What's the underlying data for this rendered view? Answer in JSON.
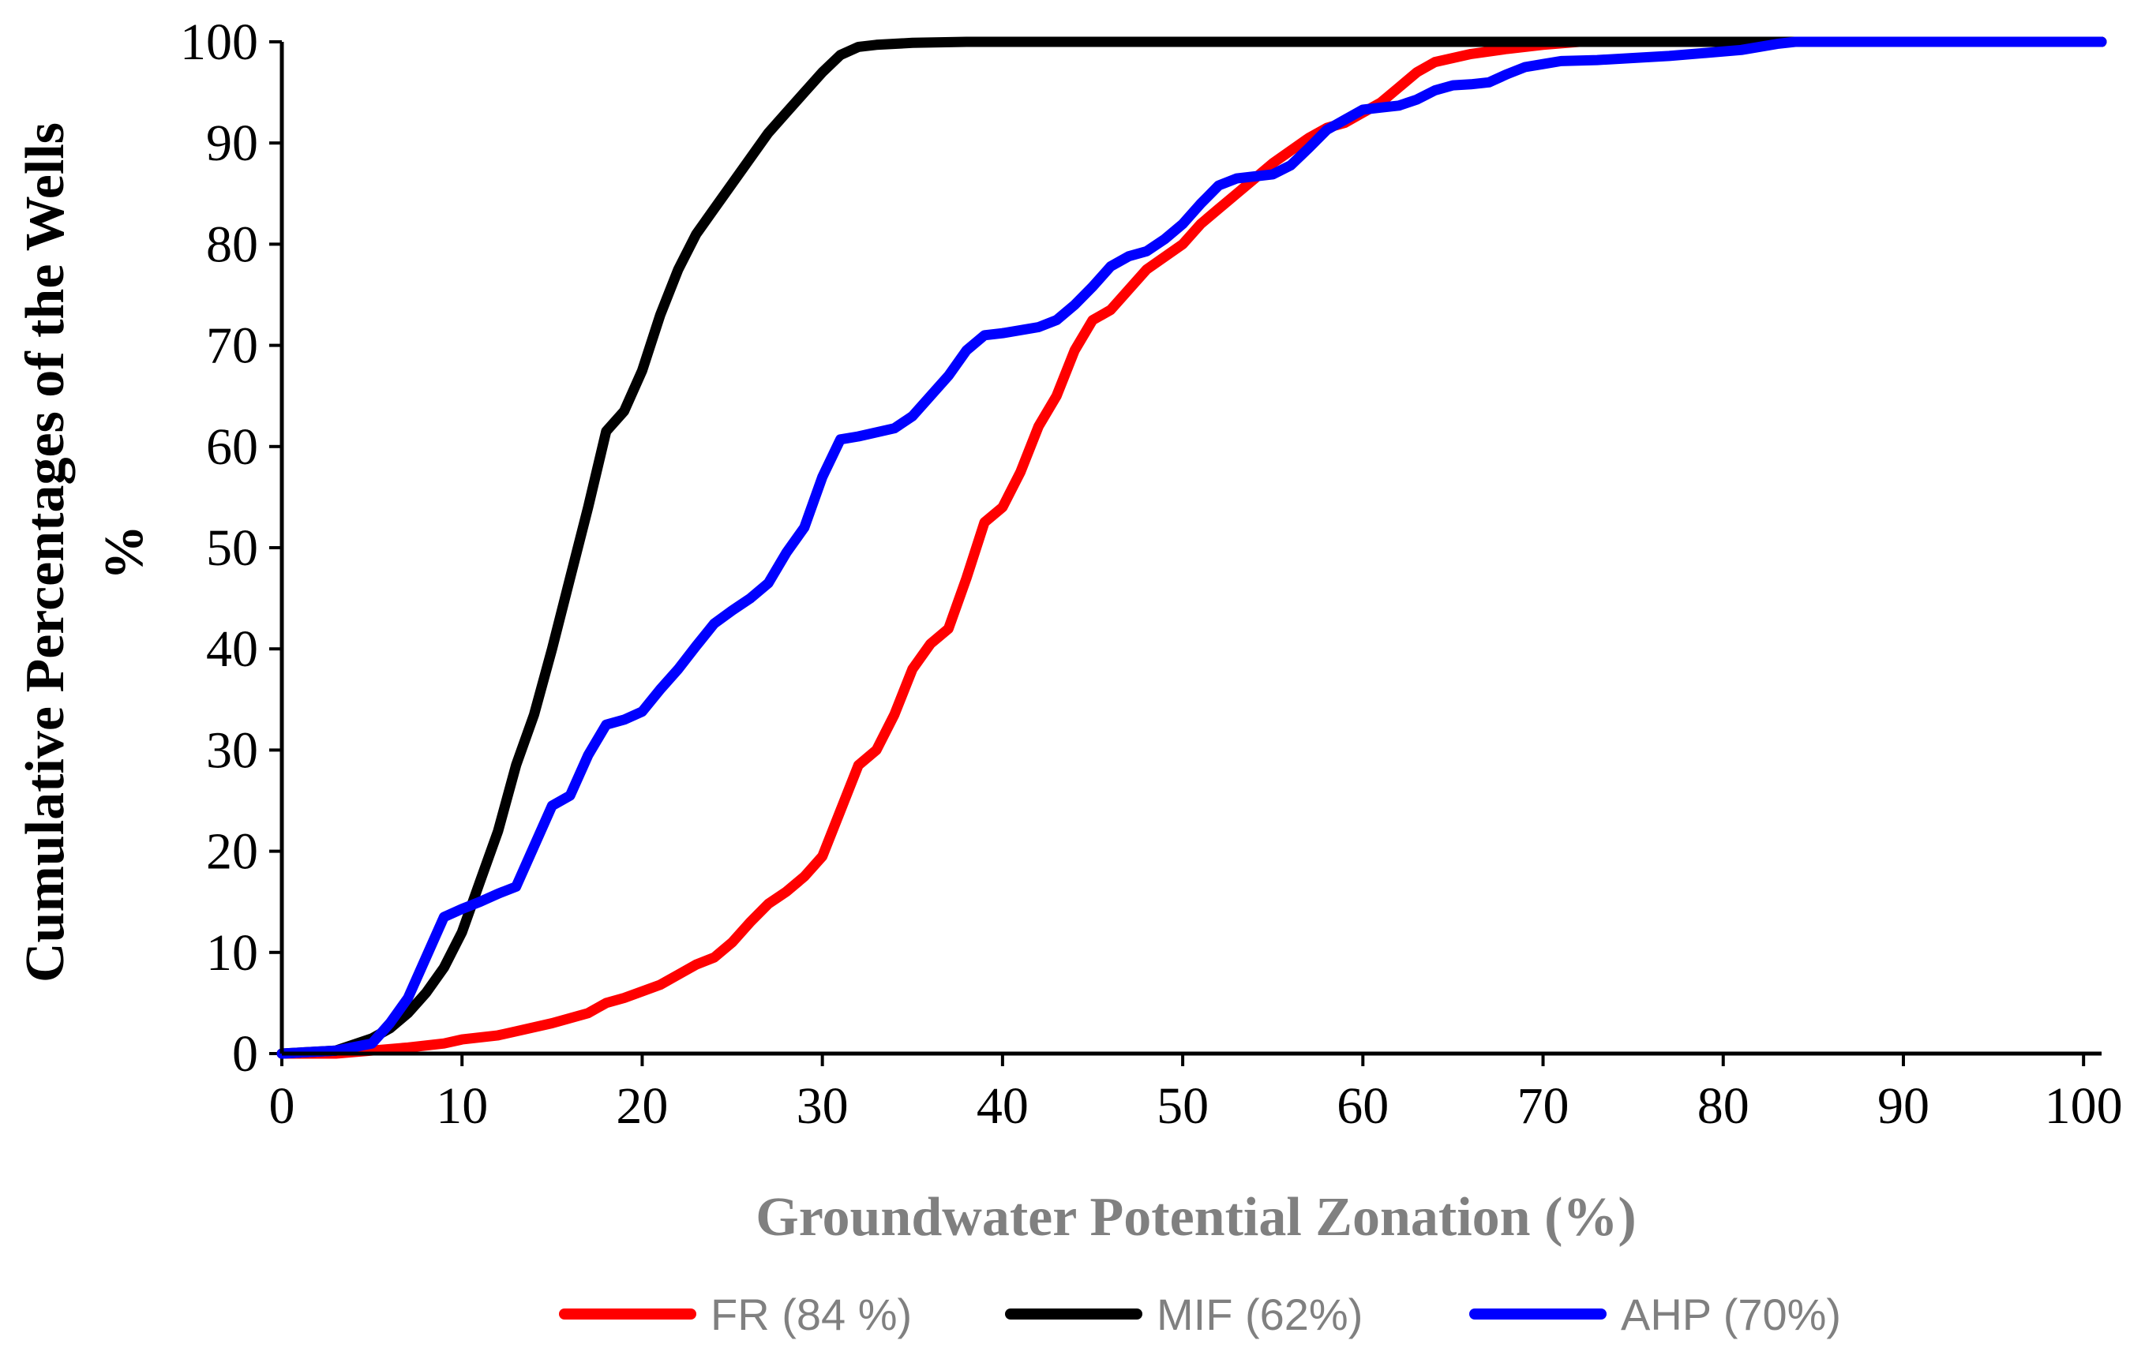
{
  "chart_data": {
    "type": "line",
    "title": "",
    "xlabel": "Groundwater Potential Zonation (%)",
    "ylabel_line1": "Cumulative Percentages of the Wells",
    "ylabel_line2": "%",
    "xlim": [
      0,
      101
    ],
    "ylim": [
      0,
      100
    ],
    "xticks": [
      "0",
      "10",
      "20",
      "30",
      "40",
      "50",
      "60",
      "70",
      "80",
      "90",
      "100"
    ],
    "yticks": [
      "0",
      "10",
      "20",
      "30",
      "40",
      "50",
      "60",
      "70",
      "80",
      "90",
      "100"
    ],
    "grid": false,
    "legend_position": "bottom",
    "series": [
      {
        "name": "FR (84 %)",
        "color": "#ff0000",
        "points": [
          [
            0,
            0
          ],
          [
            3,
            0
          ],
          [
            5,
            0.3
          ],
          [
            7,
            0.6
          ],
          [
            9,
            1
          ],
          [
            10,
            1.4
          ],
          [
            12,
            1.8
          ],
          [
            13,
            2.2
          ],
          [
            15,
            3
          ],
          [
            17,
            4
          ],
          [
            18,
            5
          ],
          [
            19,
            5.5
          ],
          [
            21,
            6.8
          ],
          [
            22,
            7.8
          ],
          [
            23,
            8.8
          ],
          [
            24,
            9.5
          ],
          [
            25,
            11
          ],
          [
            26,
            13
          ],
          [
            27,
            14.8
          ],
          [
            28,
            16
          ],
          [
            29,
            17.5
          ],
          [
            30,
            19.5
          ],
          [
            31,
            24
          ],
          [
            32,
            28.5
          ],
          [
            33,
            30
          ],
          [
            34,
            33.5
          ],
          [
            35,
            38
          ],
          [
            36,
            40.5
          ],
          [
            37,
            42
          ],
          [
            38,
            47
          ],
          [
            39,
            52.5
          ],
          [
            40,
            54
          ],
          [
            41,
            57.5
          ],
          [
            42,
            62
          ],
          [
            43,
            65
          ],
          [
            44,
            69.5
          ],
          [
            45,
            72.5
          ],
          [
            46,
            73.5
          ],
          [
            47,
            75.5
          ],
          [
            48,
            77.5
          ],
          [
            50,
            80
          ],
          [
            51,
            82
          ],
          [
            52,
            83.5
          ],
          [
            53,
            85
          ],
          [
            54,
            86.5
          ],
          [
            55,
            88
          ],
          [
            57,
            90.5
          ],
          [
            58,
            91.5
          ],
          [
            59,
            92
          ],
          [
            60,
            93
          ],
          [
            61,
            94
          ],
          [
            62,
            95.5
          ],
          [
            63,
            97
          ],
          [
            64,
            98
          ],
          [
            66,
            98.8
          ],
          [
            68,
            99.3
          ],
          [
            70,
            99.7
          ],
          [
            72,
            100
          ],
          [
            75,
            100
          ],
          [
            101,
            100
          ]
        ]
      },
      {
        "name": "MIF (62%)",
        "color": "#000000",
        "points": [
          [
            0,
            0
          ],
          [
            3,
            0.3
          ],
          [
            5,
            1.5
          ],
          [
            6,
            2.5
          ],
          [
            7,
            4
          ],
          [
            8,
            6
          ],
          [
            9,
            8.5
          ],
          [
            10,
            12
          ],
          [
            11,
            17
          ],
          [
            12,
            22
          ],
          [
            13,
            28.5
          ],
          [
            14,
            33.5
          ],
          [
            15,
            40
          ],
          [
            16,
            47
          ],
          [
            17,
            54
          ],
          [
            18,
            61.5
          ],
          [
            19,
            63.5
          ],
          [
            20,
            67.5
          ],
          [
            21,
            73
          ],
          [
            22,
            77.5
          ],
          [
            23,
            81
          ],
          [
            24,
            83.5
          ],
          [
            25,
            86
          ],
          [
            26,
            88.5
          ],
          [
            27,
            91
          ],
          [
            28,
            93
          ],
          [
            29,
            95
          ],
          [
            30,
            97
          ],
          [
            31,
            98.7
          ],
          [
            32,
            99.5
          ],
          [
            33,
            99.7
          ],
          [
            35,
            99.9
          ],
          [
            38,
            100
          ],
          [
            101,
            100
          ]
        ]
      },
      {
        "name": "AHP (70%)",
        "color": "#0000ff",
        "points": [
          [
            0,
            0
          ],
          [
            3,
            0.3
          ],
          [
            5,
            1
          ],
          [
            6,
            3
          ],
          [
            7,
            5.5
          ],
          [
            8,
            9.5
          ],
          [
            9,
            13.5
          ],
          [
            10,
            14.3
          ],
          [
            11,
            15
          ],
          [
            12,
            15.8
          ],
          [
            13,
            16.5
          ],
          [
            14,
            20.5
          ],
          [
            15,
            24.5
          ],
          [
            16,
            25.5
          ],
          [
            17,
            29.5
          ],
          [
            18,
            32.5
          ],
          [
            19,
            33
          ],
          [
            20,
            33.8
          ],
          [
            21,
            36
          ],
          [
            22,
            38
          ],
          [
            23,
            40.3
          ],
          [
            24,
            42.5
          ],
          [
            25,
            43.8
          ],
          [
            26,
            45
          ],
          [
            27,
            46.5
          ],
          [
            28,
            49.5
          ],
          [
            29,
            52
          ],
          [
            30,
            57
          ],
          [
            31,
            60.7
          ],
          [
            32,
            61
          ],
          [
            34,
            61.8
          ],
          [
            35,
            63
          ],
          [
            36,
            65
          ],
          [
            37,
            67
          ],
          [
            38,
            69.5
          ],
          [
            39,
            71
          ],
          [
            40,
            71.2
          ],
          [
            42,
            71.8
          ],
          [
            43,
            72.5
          ],
          [
            44,
            74
          ],
          [
            45,
            75.8
          ],
          [
            46,
            77.8
          ],
          [
            47,
            78.8
          ],
          [
            48,
            79.3
          ],
          [
            49,
            80.5
          ],
          [
            50,
            82
          ],
          [
            51,
            84
          ],
          [
            52,
            85.8
          ],
          [
            53,
            86.5
          ],
          [
            54,
            86.7
          ],
          [
            55,
            86.9
          ],
          [
            56,
            87.8
          ],
          [
            57,
            89.5
          ],
          [
            58,
            91.3
          ],
          [
            59,
            92.3
          ],
          [
            60,
            93.3
          ],
          [
            61,
            93.5
          ],
          [
            62,
            93.7
          ],
          [
            63,
            94.3
          ],
          [
            64,
            95.2
          ],
          [
            65,
            95.7
          ],
          [
            66,
            95.8
          ],
          [
            67,
            96
          ],
          [
            68,
            96.8
          ],
          [
            69,
            97.5
          ],
          [
            70,
            97.8
          ],
          [
            71,
            98.1
          ],
          [
            73,
            98.2
          ],
          [
            75,
            98.4
          ],
          [
            77,
            98.6
          ],
          [
            79,
            98.9
          ],
          [
            81,
            99.2
          ],
          [
            83,
            99.8
          ],
          [
            84,
            100
          ],
          [
            101,
            100
          ]
        ]
      }
    ]
  }
}
